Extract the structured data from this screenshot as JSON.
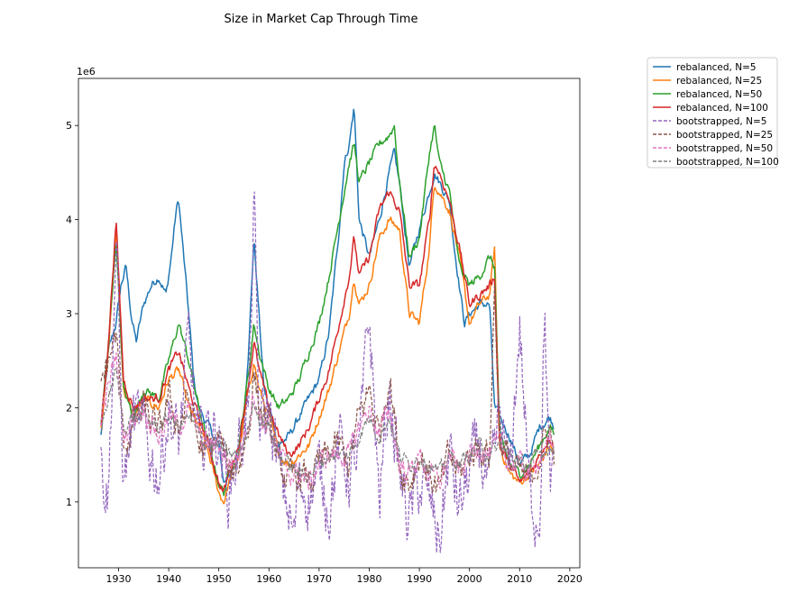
{
  "chart_data": {
    "type": "line",
    "title": "Size in Market Cap Through Time",
    "xlabel": "",
    "ylabel": "",
    "y_offset_label": "1e6",
    "xlim": [
      1922,
      2022
    ],
    "ylim": [
      0.3,
      5.5
    ],
    "x_ticks": [
      1930,
      1940,
      1950,
      1960,
      1970,
      1980,
      1990,
      2000,
      2010,
      2020
    ],
    "y_ticks": [
      1,
      2,
      3,
      4,
      5
    ],
    "x_tick_labels": [
      "1930",
      "1940",
      "1950",
      "1960",
      "1970",
      "1980",
      "1990",
      "2000",
      "2010",
      "2020"
    ],
    "y_tick_labels": [
      "1",
      "2",
      "3",
      "4",
      "5"
    ],
    "grid": false,
    "legend_position": "outside-top-right",
    "x_start": 1926.5,
    "x_end": 2017,
    "series": [
      {
        "name": "rebalanced, N=5",
        "color": "#1f77b4",
        "dash": "solid",
        "x": [
          1926.5,
          1928,
          1929.5,
          1930.5,
          1931.5,
          1932.5,
          1933.5,
          1935,
          1936.5,
          1938,
          1939.5,
          1940.5,
          1941.5,
          1942,
          1943,
          1944,
          1945,
          1946,
          1948,
          1950,
          1951,
          1952,
          1954,
          1955,
          1956,
          1957,
          1958,
          1959,
          1960,
          1962,
          1964,
          1966,
          1968,
          1970,
          1972,
          1974,
          1975,
          1976,
          1977,
          1978,
          1980,
          1982,
          1984,
          1985,
          1986,
          1988,
          1990,
          1992,
          1993,
          1994,
          1996,
          1997,
          1998,
          1999,
          2000,
          2002,
          2004,
          2005,
          2006,
          2008,
          2010,
          2012,
          2014,
          2016,
          2017
        ],
        "y": [
          1.7,
          2.6,
          2.9,
          3.3,
          3.5,
          3.0,
          2.7,
          3.1,
          3.3,
          3.4,
          3.2,
          3.6,
          4.1,
          4.2,
          3.6,
          3.0,
          2.3,
          2.0,
          1.8,
          1.6,
          1.2,
          1.3,
          1.5,
          1.9,
          2.7,
          3.8,
          3.0,
          2.2,
          2.0,
          1.6,
          1.7,
          1.9,
          2.1,
          2.3,
          2.8,
          3.9,
          4.6,
          4.8,
          5.2,
          4.0,
          3.6,
          4.0,
          4.5,
          4.7,
          4.4,
          3.5,
          3.9,
          4.3,
          4.5,
          4.4,
          4.2,
          3.7,
          3.3,
          2.9,
          3.0,
          3.1,
          3.1,
          2.0,
          1.9,
          1.7,
          1.4,
          1.5,
          1.8,
          1.9,
          1.8
        ]
      },
      {
        "name": "rebalanced, N=25",
        "color": "#ff7f0e",
        "dash": "solid",
        "x": [
          1926.5,
          1928,
          1929.5,
          1931,
          1933,
          1935,
          1938,
          1940,
          1942,
          1944,
          1946,
          1948,
          1950,
          1951,
          1952,
          1954,
          1956,
          1957,
          1958,
          1960,
          1962,
          1964,
          1966,
          1968,
          1970,
          1972,
          1974,
          1976,
          1977,
          1978,
          1980,
          1982,
          1984,
          1986,
          1988,
          1990,
          1992,
          1993,
          1994,
          1996,
          1998,
          2000,
          2002,
          2004,
          2005,
          2006,
          2008,
          2010,
          2012,
          2014,
          2016,
          2017
        ],
        "y": [
          1.8,
          2.6,
          3.9,
          2.2,
          1.9,
          2.1,
          2.0,
          2.3,
          2.4,
          2.0,
          1.8,
          1.5,
          1.1,
          1.0,
          1.2,
          1.5,
          2.2,
          2.5,
          2.2,
          1.9,
          1.5,
          1.4,
          1.5,
          1.6,
          1.9,
          2.2,
          2.6,
          3.0,
          3.4,
          3.1,
          3.3,
          3.8,
          4.0,
          3.9,
          3.0,
          2.9,
          3.7,
          4.4,
          4.3,
          4.1,
          3.6,
          2.9,
          3.1,
          3.2,
          3.7,
          1.6,
          1.3,
          1.2,
          1.3,
          1.4,
          1.6,
          1.5
        ]
      },
      {
        "name": "rebalanced, N=50",
        "color": "#2ca02c",
        "dash": "solid",
        "x": [
          1926.5,
          1928,
          1929.5,
          1931,
          1933,
          1935,
          1938,
          1940,
          1942,
          1944,
          1946,
          1948,
          1950,
          1951,
          1952,
          1954,
          1956,
          1957,
          1958,
          1960,
          1962,
          1964,
          1966,
          1968,
          1970,
          1972,
          1974,
          1976,
          1977,
          1978,
          1980,
          1982,
          1984,
          1985,
          1986,
          1988,
          1990,
          1992,
          1993,
          1994,
          1996,
          1998,
          2000,
          2002,
          2004,
          2005,
          2006,
          2008,
          2010,
          2012,
          2014,
          2016,
          2017
        ],
        "y": [
          1.8,
          2.7,
          3.8,
          2.2,
          1.9,
          2.2,
          2.1,
          2.5,
          2.9,
          2.5,
          2.0,
          1.6,
          1.2,
          1.1,
          1.3,
          1.6,
          2.4,
          2.9,
          2.6,
          2.2,
          2.0,
          2.1,
          2.3,
          2.6,
          2.9,
          3.4,
          4.0,
          4.6,
          4.8,
          4.4,
          4.6,
          4.8,
          4.9,
          5.0,
          4.4,
          3.6,
          3.8,
          4.7,
          5.0,
          4.6,
          4.3,
          3.5,
          3.3,
          3.4,
          3.6,
          3.5,
          1.7,
          1.4,
          1.3,
          1.4,
          1.6,
          1.8,
          1.7
        ]
      },
      {
        "name": "rebalanced, N=100",
        "color": "#d62728",
        "dash": "solid",
        "x": [
          1926.5,
          1928,
          1929.5,
          1931,
          1933,
          1935,
          1938,
          1940,
          1942,
          1944,
          1946,
          1948,
          1950,
          1951,
          1952,
          1954,
          1956,
          1957,
          1958,
          1960,
          1962,
          1964,
          1966,
          1968,
          1970,
          1972,
          1974,
          1976,
          1977,
          1978,
          1980,
          1982,
          1984,
          1986,
          1988,
          1990,
          1992,
          1993,
          1994,
          1996,
          1998,
          2000,
          2002,
          2004,
          2005,
          2006,
          2008,
          2010,
          2012,
          2014,
          2016,
          2017
        ],
        "y": [
          1.8,
          2.7,
          4.0,
          2.3,
          2.0,
          2.1,
          2.1,
          2.4,
          2.6,
          2.2,
          1.9,
          1.6,
          1.2,
          1.1,
          1.3,
          1.6,
          2.3,
          2.7,
          2.4,
          2.0,
          1.7,
          1.5,
          1.6,
          1.8,
          2.1,
          2.4,
          2.9,
          3.4,
          3.8,
          3.4,
          3.6,
          4.1,
          4.3,
          4.1,
          3.3,
          3.3,
          4.0,
          4.6,
          4.5,
          4.2,
          3.7,
          3.1,
          3.2,
          3.3,
          3.4,
          1.6,
          1.4,
          1.2,
          1.3,
          1.5,
          1.7,
          1.6
        ]
      },
      {
        "name": "bootstrapped, N=5",
        "color": "#9467bd",
        "dash": "dashed",
        "x": [
          1926.5,
          1928,
          1929.5,
          1931,
          1933,
          1935,
          1938,
          1940,
          1942,
          1944,
          1946,
          1948,
          1950,
          1952,
          1954,
          1956,
          1957,
          1958,
          1960,
          1962,
          1964,
          1965,
          1966,
          1968,
          1970,
          1972,
          1974,
          1976,
          1978,
          1980,
          1982,
          1984,
          1986,
          1988,
          1990,
          1992,
          1994,
          1996,
          1998,
          2000,
          2002,
          2004,
          2006,
          2008,
          2010,
          2012,
          2014,
          2015,
          2016,
          2017
        ],
        "y": [
          1.4,
          1.1,
          3.8,
          1.2,
          1.9,
          1.7,
          1.3,
          2.0,
          1.6,
          2.7,
          1.5,
          1.8,
          1.7,
          1.1,
          1.6,
          2.0,
          4.2,
          1.8,
          2.0,
          1.3,
          0.9,
          0.6,
          1.2,
          1.1,
          1.3,
          1.0,
          1.6,
          1.3,
          1.5,
          3.0,
          1.0,
          2.2,
          1.3,
          0.8,
          1.2,
          1.0,
          0.6,
          1.5,
          0.9,
          1.3,
          1.6,
          1.0,
          1.9,
          1.2,
          2.9,
          1.0,
          0.9,
          3.1,
          1.1,
          1.2
        ]
      },
      {
        "name": "bootstrapped, N=25",
        "color": "#8c564b",
        "dash": "dashed",
        "x": [
          1926.5,
          1928,
          1929.5,
          1931,
          1933,
          1935,
          1938,
          1940,
          1942,
          1944,
          1946,
          1948,
          1950,
          1952,
          1954,
          1956,
          1957,
          1958,
          1960,
          1962,
          1964,
          1966,
          1968,
          1970,
          1972,
          1974,
          1976,
          1978,
          1980,
          1982,
          1984,
          1986,
          1988,
          1990,
          1992,
          1994,
          1996,
          1998,
          2000,
          2002,
          2004,
          2005,
          2006,
          2008,
          2010,
          2012,
          2014,
          2016,
          2017
        ],
        "y": [
          2.3,
          2.5,
          2.8,
          1.6,
          1.8,
          2.0,
          1.7,
          2.1,
          1.8,
          2.1,
          1.6,
          1.5,
          1.7,
          1.3,
          1.4,
          1.8,
          2.4,
          2.0,
          1.8,
          1.4,
          1.2,
          1.3,
          1.2,
          1.4,
          1.5,
          1.6,
          1.4,
          1.9,
          2.2,
          1.7,
          2.4,
          1.4,
          1.2,
          1.5,
          1.3,
          1.1,
          1.5,
          1.3,
          1.5,
          1.6,
          1.5,
          3.3,
          1.7,
          1.4,
          1.3,
          1.2,
          1.5,
          1.8,
          1.4
        ]
      },
      {
        "name": "bootstrapped, N=50",
        "color": "#e377c2",
        "dash": "dashed",
        "x": [
          1926.5,
          1928,
          1929.5,
          1931,
          1933,
          1935,
          1938,
          1940,
          1942,
          1944,
          1946,
          1948,
          1950,
          1952,
          1954,
          1956,
          1957,
          1958,
          1960,
          1962,
          1964,
          1966,
          1968,
          1970,
          1972,
          1974,
          1976,
          1978,
          1980,
          1982,
          1984,
          1986,
          1988,
          1990,
          1992,
          1994,
          1996,
          1998,
          2000,
          2002,
          2004,
          2006,
          2008,
          2010,
          2012,
          2014,
          2016,
          2017
        ],
        "y": [
          1.9,
          2.2,
          2.6,
          1.7,
          1.9,
          2.0,
          1.7,
          1.9,
          1.8,
          2.0,
          1.7,
          1.6,
          1.6,
          1.4,
          1.5,
          1.9,
          2.2,
          1.9,
          1.8,
          1.5,
          1.3,
          1.3,
          1.2,
          1.4,
          1.5,
          1.5,
          1.5,
          1.8,
          2.0,
          1.7,
          2.0,
          1.4,
          1.3,
          1.5,
          1.3,
          1.2,
          1.5,
          1.3,
          1.5,
          1.6,
          1.5,
          1.6,
          1.4,
          1.4,
          1.3,
          1.5,
          1.6,
          1.5
        ]
      },
      {
        "name": "bootstrapped, N=100",
        "color": "#7f7f7f",
        "dash": "dashed",
        "x": [
          1926.5,
          1928,
          1929.5,
          1931,
          1933,
          1935,
          1938,
          1940,
          1942,
          1944,
          1946,
          1948,
          1950,
          1952,
          1954,
          1956,
          1957,
          1958,
          1960,
          1962,
          1964,
          1966,
          1968,
          1970,
          1972,
          1974,
          1976,
          1978,
          1980,
          1982,
          1984,
          1986,
          1988,
          1990,
          1992,
          1994,
          1996,
          1998,
          2000,
          2002,
          2004,
          2006,
          2008,
          2010,
          2012,
          2014,
          2016,
          2017
        ],
        "y": [
          1.8,
          2.1,
          2.4,
          1.8,
          1.9,
          1.9,
          1.8,
          1.9,
          1.8,
          1.9,
          1.7,
          1.6,
          1.6,
          1.5,
          1.5,
          1.8,
          2.1,
          1.9,
          1.8,
          1.5,
          1.4,
          1.3,
          1.3,
          1.4,
          1.5,
          1.5,
          1.5,
          1.7,
          1.9,
          1.7,
          1.9,
          1.5,
          1.4,
          1.5,
          1.4,
          1.3,
          1.5,
          1.4,
          1.5,
          1.6,
          1.5,
          1.6,
          1.5,
          1.4,
          1.4,
          1.5,
          1.6,
          1.5
        ]
      }
    ]
  }
}
